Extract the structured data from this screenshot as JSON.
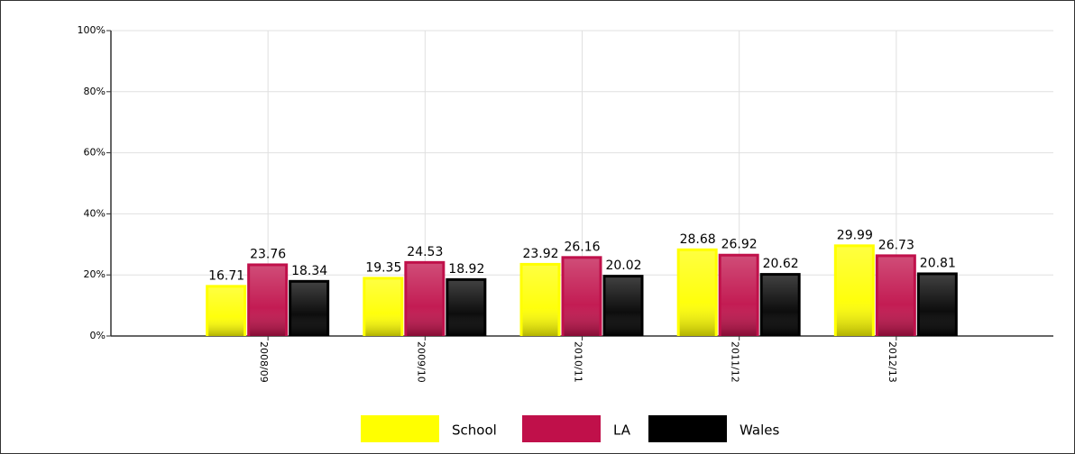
{
  "chart_data": {
    "type": "bar",
    "categories": [
      "2008/09",
      "2009/10",
      "2010/11",
      "2011/12",
      "2012/13"
    ],
    "series": [
      {
        "name": "School",
        "color": "#ffff00",
        "values": [
          16.71,
          19.35,
          23.92,
          28.68,
          29.99
        ]
      },
      {
        "name": "LA",
        "color": "#c0104a",
        "values": [
          23.76,
          24.53,
          26.16,
          26.92,
          26.73
        ]
      },
      {
        "name": "Wales",
        "color": "#000000",
        "values": [
          18.34,
          18.92,
          20.02,
          20.62,
          20.81
        ]
      }
    ],
    "ylim": [
      0,
      100
    ],
    "yticks": [
      {
        "value": 0,
        "label": "0%"
      },
      {
        "value": 20,
        "label": "20%"
      },
      {
        "value": 40,
        "label": "40%"
      },
      {
        "value": 60,
        "label": "60%"
      },
      {
        "value": 80,
        "label": "80%"
      },
      {
        "value": 100,
        "label": "100%"
      }
    ],
    "grid": true,
    "legend": "bottom"
  }
}
